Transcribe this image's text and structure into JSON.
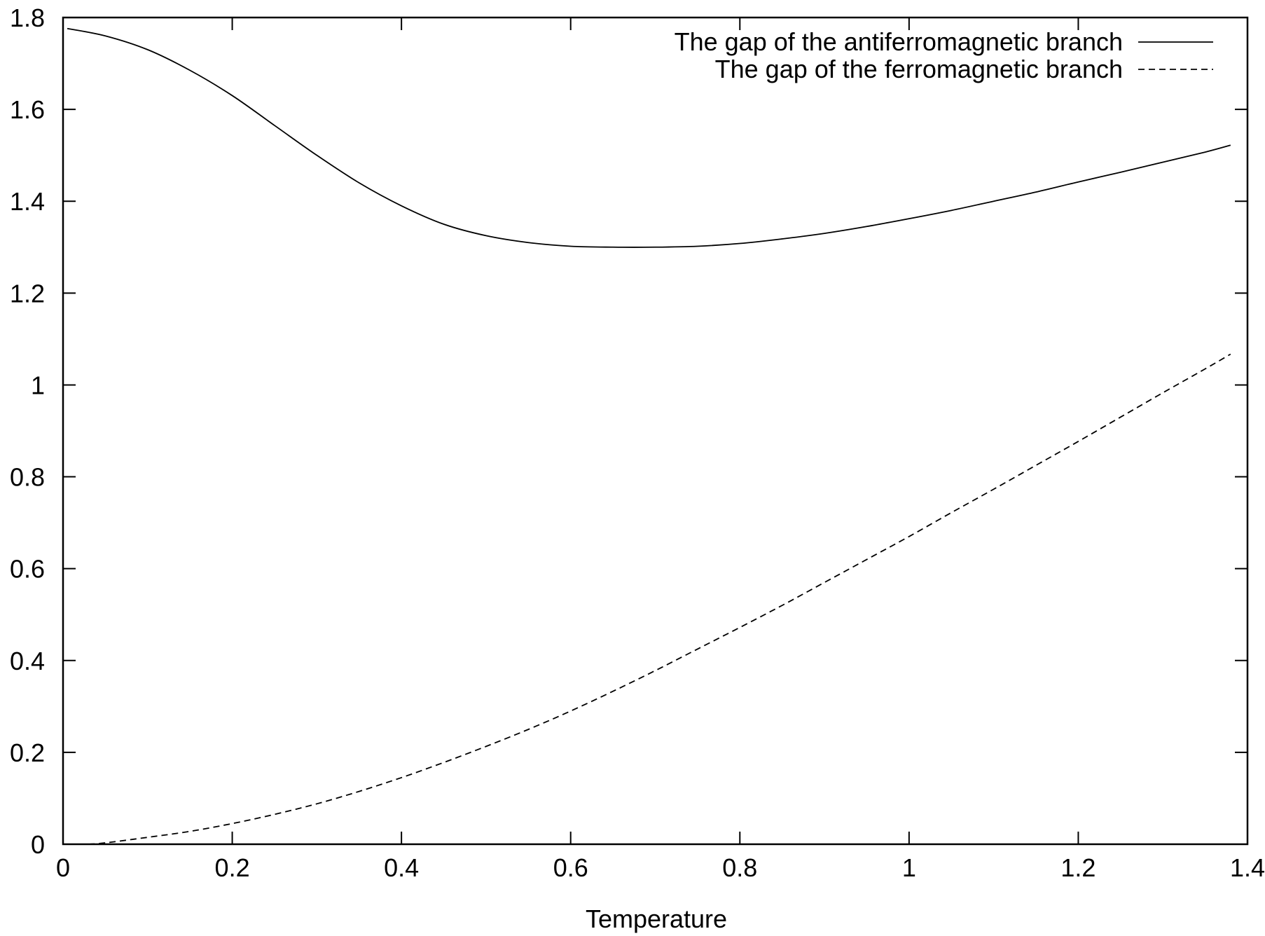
{
  "chart_data": {
    "type": "line",
    "title": "",
    "xlabel": "Temperature",
    "ylabel": "",
    "xlim": [
      0,
      1.4
    ],
    "ylim": [
      0,
      1.8
    ],
    "xticks": [
      "0",
      "0.2",
      "0.4",
      "0.6",
      "0.8",
      "1",
      "1.2",
      "1.4"
    ],
    "yticks": [
      "0",
      "0.2",
      "0.4",
      "0.6",
      "0.8",
      "1",
      "1.2",
      "1.4",
      "1.6",
      "1.8"
    ],
    "xtick_values": [
      0,
      0.2,
      0.4,
      0.6,
      0.8,
      1.0,
      1.2,
      1.4
    ],
    "ytick_values": [
      0,
      0.2,
      0.4,
      0.6,
      0.8,
      1.0,
      1.2,
      1.4,
      1.6,
      1.8
    ],
    "grid": false,
    "legend_position": "top-right",
    "series": [
      {
        "name": "The gap of the antiferromagnetic branch",
        "style": "solid",
        "color": "#000000",
        "x": [
          0.005,
          0.05,
          0.1,
          0.15,
          0.2,
          0.25,
          0.3,
          0.35,
          0.4,
          0.45,
          0.5,
          0.55,
          0.6,
          0.65,
          0.7,
          0.75,
          0.8,
          0.85,
          0.9,
          0.95,
          1.0,
          1.05,
          1.1,
          1.15,
          1.2,
          1.25,
          1.3,
          1.35,
          1.38
        ],
        "y": [
          1.776,
          1.76,
          1.73,
          1.685,
          1.63,
          1.565,
          1.5,
          1.44,
          1.39,
          1.35,
          1.325,
          1.31,
          1.302,
          1.3,
          1.3,
          1.302,
          1.308,
          1.318,
          1.33,
          1.345,
          1.362,
          1.38,
          1.4,
          1.42,
          1.442,
          1.463,
          1.485,
          1.507,
          1.522
        ]
      },
      {
        "name": "The gap of the ferromagnetic branch",
        "style": "dashed",
        "color": "#000000",
        "x": [
          0.03,
          0.05,
          0.1,
          0.15,
          0.2,
          0.25,
          0.3,
          0.35,
          0.4,
          0.45,
          0.5,
          0.55,
          0.6,
          0.65,
          0.7,
          0.75,
          0.8,
          0.85,
          0.9,
          0.95,
          1.0,
          1.05,
          1.1,
          1.15,
          1.2,
          1.25,
          1.3,
          1.35,
          1.38
        ],
        "y": [
          0.0,
          0.003,
          0.015,
          0.028,
          0.045,
          0.065,
          0.088,
          0.115,
          0.145,
          0.178,
          0.213,
          0.25,
          0.29,
          0.333,
          0.378,
          0.425,
          0.472,
          0.52,
          0.57,
          0.62,
          0.67,
          0.722,
          0.773,
          0.825,
          0.877,
          0.93,
          0.983,
          1.035,
          1.067
        ]
      }
    ]
  }
}
